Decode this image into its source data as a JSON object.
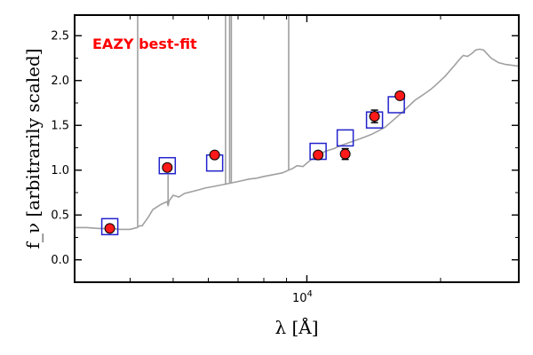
{
  "chart_data": {
    "type": "scatter",
    "title": "",
    "xlabel": "λ [Å]",
    "ylabel": "f_ν [arbitrarily scaled]",
    "xscale": "log",
    "xlim": [
      3000,
      30000
    ],
    "ylim": [
      -0.25,
      2.73
    ],
    "grid": false,
    "legend": "none",
    "annotation": {
      "text": "EAZY best-fit",
      "color": "#ff0000",
      "placement": "top-left"
    },
    "x_ticks": [
      {
        "value": 10000,
        "base": "10",
        "exp": "4"
      }
    ],
    "y_ticks": [
      {
        "value": 0.0,
        "label": "0.0"
      },
      {
        "value": 0.5,
        "label": "0.5"
      },
      {
        "value": 1.0,
        "label": "1.0"
      },
      {
        "value": 1.5,
        "label": "1.5"
      },
      {
        "value": 2.0,
        "label": "2.0"
      },
      {
        "value": 2.5,
        "label": "2.5"
      }
    ],
    "series": [
      {
        "kind": "line",
        "color": "#a0a0a0",
        "x": [
          3000,
          3200,
          3400,
          3600,
          3800,
          4000,
          4150,
          4200,
          4260,
          4300,
          4400,
          4500,
          4700,
          4850,
          4870,
          4900,
          5000,
          5150,
          5300,
          5500,
          5700,
          5900,
          6200,
          6500,
          6800,
          7100,
          7400,
          7700,
          8000,
          8400,
          8800,
          9100,
          9300,
          9500,
          9800,
          10000,
          10300,
          10600,
          11000,
          11500,
          12000,
          12500,
          13000,
          13500,
          14000,
          14500,
          15000,
          15500,
          16000,
          16500,
          17000,
          17500,
          18000,
          18500,
          19000,
          19500,
          20000,
          20500,
          21000,
          21500,
          22000,
          22500,
          23000,
          23500,
          24000,
          24500,
          25000,
          26000,
          27000,
          28000,
          29000,
          30000
        ],
        "y": [
          0.36,
          0.36,
          0.35,
          0.35,
          0.34,
          0.34,
          0.36,
          0.38,
          0.38,
          0.41,
          0.48,
          0.56,
          0.62,
          0.65,
          0.6,
          0.66,
          0.72,
          0.7,
          0.74,
          0.76,
          0.78,
          0.8,
          0.82,
          0.84,
          0.86,
          0.88,
          0.9,
          0.91,
          0.93,
          0.95,
          0.97,
          1.0,
          1.02,
          1.05,
          1.04,
          1.08,
          1.13,
          1.17,
          1.21,
          1.24,
          1.28,
          1.31,
          1.34,
          1.37,
          1.4,
          1.44,
          1.48,
          1.54,
          1.6,
          1.66,
          1.72,
          1.78,
          1.82,
          1.86,
          1.9,
          1.95,
          2.0,
          2.05,
          2.11,
          2.17,
          2.23,
          2.28,
          2.27,
          2.3,
          2.34,
          2.35,
          2.34,
          2.25,
          2.2,
          2.18,
          2.17,
          2.16
        ]
      },
      {
        "kind": "emission-lines",
        "color": "#a0a0a0",
        "lines": [
          {
            "x": 4160,
            "peak": 2.73
          },
          {
            "x": 4870,
            "peak": 0.95
          },
          {
            "x": 6560,
            "peak": 2.73
          },
          {
            "x": 6700,
            "peak": 2.73
          },
          {
            "x": 6760,
            "peak": 2.73
          },
          {
            "x": 9100,
            "peak": 2.73
          }
        ]
      },
      {
        "kind": "model-photometry",
        "marker": "open-square",
        "color": "#2222cc",
        "x": [
          3600,
          4850,
          6200,
          10600,
          12200,
          14200,
          15900
        ],
        "y": [
          0.37,
          1.05,
          1.08,
          1.21,
          1.36,
          1.56,
          1.73
        ]
      },
      {
        "kind": "observed-photometry",
        "marker": "filled-circle",
        "color": "#ff1a1a",
        "x": [
          3600,
          4850,
          6200,
          10600,
          12200,
          14200,
          16200
        ],
        "y": [
          0.35,
          1.03,
          1.17,
          1.17,
          1.18,
          1.6,
          1.83
        ],
        "yerr": [
          0.02,
          0.02,
          0.03,
          0.02,
          0.06,
          0.07,
          0.03
        ]
      }
    ]
  }
}
